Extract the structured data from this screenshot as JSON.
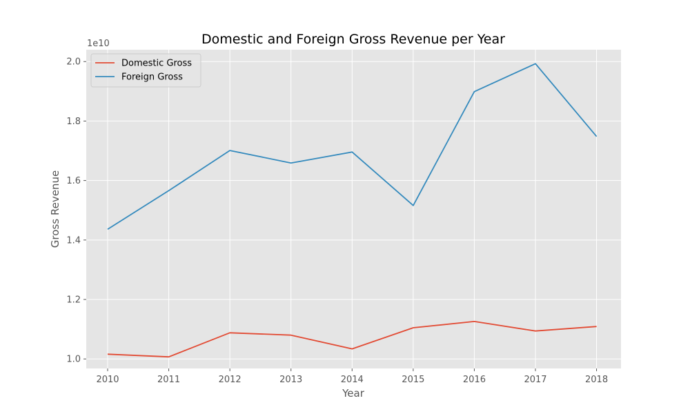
{
  "chart_data": {
    "type": "line",
    "title": "Domestic and Foreign Gross Revenue per Year",
    "xlabel": "Year",
    "ylabel": "Gross Revenue",
    "y_offset_label": "1e10",
    "x": [
      2010,
      2011,
      2012,
      2013,
      2014,
      2015,
      2016,
      2017,
      2018
    ],
    "x_tick_labels": [
      "2010",
      "2011",
      "2012",
      "2013",
      "2014",
      "2015",
      "2016",
      "2017",
      "2018"
    ],
    "y_ticks": [
      1.0,
      1.2,
      1.4,
      1.6,
      1.8,
      2.0
    ],
    "y_tick_labels": [
      "1.0",
      "1.2",
      "1.4",
      "1.6",
      "1.8",
      "2.0"
    ],
    "y_scale_factor": 10000000000,
    "xlim": [
      2009.65,
      2018.4
    ],
    "ylim": [
      0.968,
      2.04
    ],
    "grid": true,
    "legend_position": "top-left",
    "series": [
      {
        "name": "Domestic Gross",
        "color": "#E24A33",
        "values": [
          1.016,
          1.007,
          1.088,
          1.08,
          1.034,
          1.105,
          1.126,
          1.094,
          1.109
        ]
      },
      {
        "name": "Foreign Gross",
        "color": "#348ABD",
        "values": [
          1.436,
          1.566,
          1.701,
          1.659,
          1.696,
          1.516,
          1.899,
          1.993,
          1.748
        ]
      }
    ]
  }
}
